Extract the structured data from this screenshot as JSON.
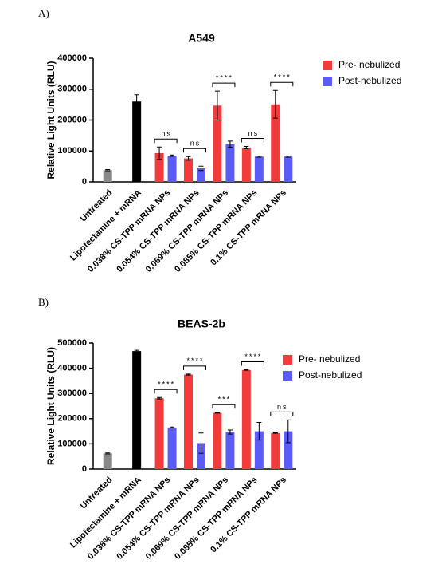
{
  "chart_data": [
    {
      "type": "bar",
      "panel_label": "A)",
      "title": "A549",
      "ylabel": "Relative Light Units (RLU)",
      "categories": [
        "Untreated",
        "Lipofectamine + mRNA",
        "0.038% CS-TPP mRNA NPs",
        "0.054% CS-TPP mRNA NPs",
        "0.069% CS-TPP mRNA NPs",
        "0.085% CS-TPP mRNA NPs",
        "0.1% CS-TPP mRNA NPs"
      ],
      "control_values": [
        38000,
        260000,
        null,
        null,
        null,
        null,
        null
      ],
      "control_errors": [
        2000,
        22000,
        null,
        null,
        null,
        null,
        null
      ],
      "control_colors": [
        "#888888",
        "#000000"
      ],
      "series": [
        {
          "name": "Pre- nebulized",
          "color": "#f23b3b",
          "values": [
            null,
            null,
            93000,
            76000,
            247000,
            111000,
            251000
          ],
          "errors": [
            null,
            null,
            20000,
            6000,
            47000,
            4000,
            45000
          ]
        },
        {
          "name": "Post-nebulized",
          "color": "#5b5bf5",
          "values": [
            null,
            null,
            85000,
            44000,
            122000,
            82000,
            82000
          ],
          "errors": [
            null,
            null,
            2000,
            7000,
            10000,
            2000,
            2000
          ]
        }
      ],
      "significance": [
        null,
        null,
        "ns",
        "ns",
        "****",
        "ns",
        "****"
      ],
      "ylim": [
        0,
        400000
      ],
      "yticks": [
        0,
        100000,
        200000,
        300000,
        400000
      ]
    },
    {
      "type": "bar",
      "panel_label": "B)",
      "title": "BEAS-2b",
      "ylabel": "Relative Light Units (RLU)",
      "categories": [
        "Untreated",
        "Lipofectamine + mRNA",
        "0.038% CS-TPP mRNA NPs",
        "0.054% CS-TPP mRNA NPs",
        "0.069% CS-TPP mRNA NPs",
        "0.085% CS-TPP mRNA NPs",
        "0.1% CS-TPP mRNA NPs"
      ],
      "control_values": [
        62000,
        468000,
        null,
        null,
        null,
        null,
        null
      ],
      "control_errors": [
        2000,
        3000,
        null,
        null,
        null,
        null,
        null
      ],
      "control_colors": [
        "#888888",
        "#000000"
      ],
      "series": [
        {
          "name": "Pre- nebulized",
          "color": "#f23b3b",
          "values": [
            null,
            null,
            281000,
            375000,
            223000,
            393000,
            143000
          ],
          "errors": [
            null,
            null,
            3000,
            2000,
            1000,
            1000,
            1000
          ]
        },
        {
          "name": "Post-nebulized",
          "color": "#5b5bf5",
          "values": [
            null,
            null,
            165000,
            103000,
            147000,
            150000,
            150000
          ],
          "errors": [
            null,
            null,
            2000,
            40000,
            8000,
            35000,
            45000
          ]
        }
      ],
      "significance": [
        null,
        null,
        "****",
        "****",
        "***",
        "****",
        "ns"
      ],
      "ylim": [
        0,
        500000
      ],
      "yticks": [
        0,
        100000,
        200000,
        300000,
        400000,
        500000
      ]
    }
  ]
}
